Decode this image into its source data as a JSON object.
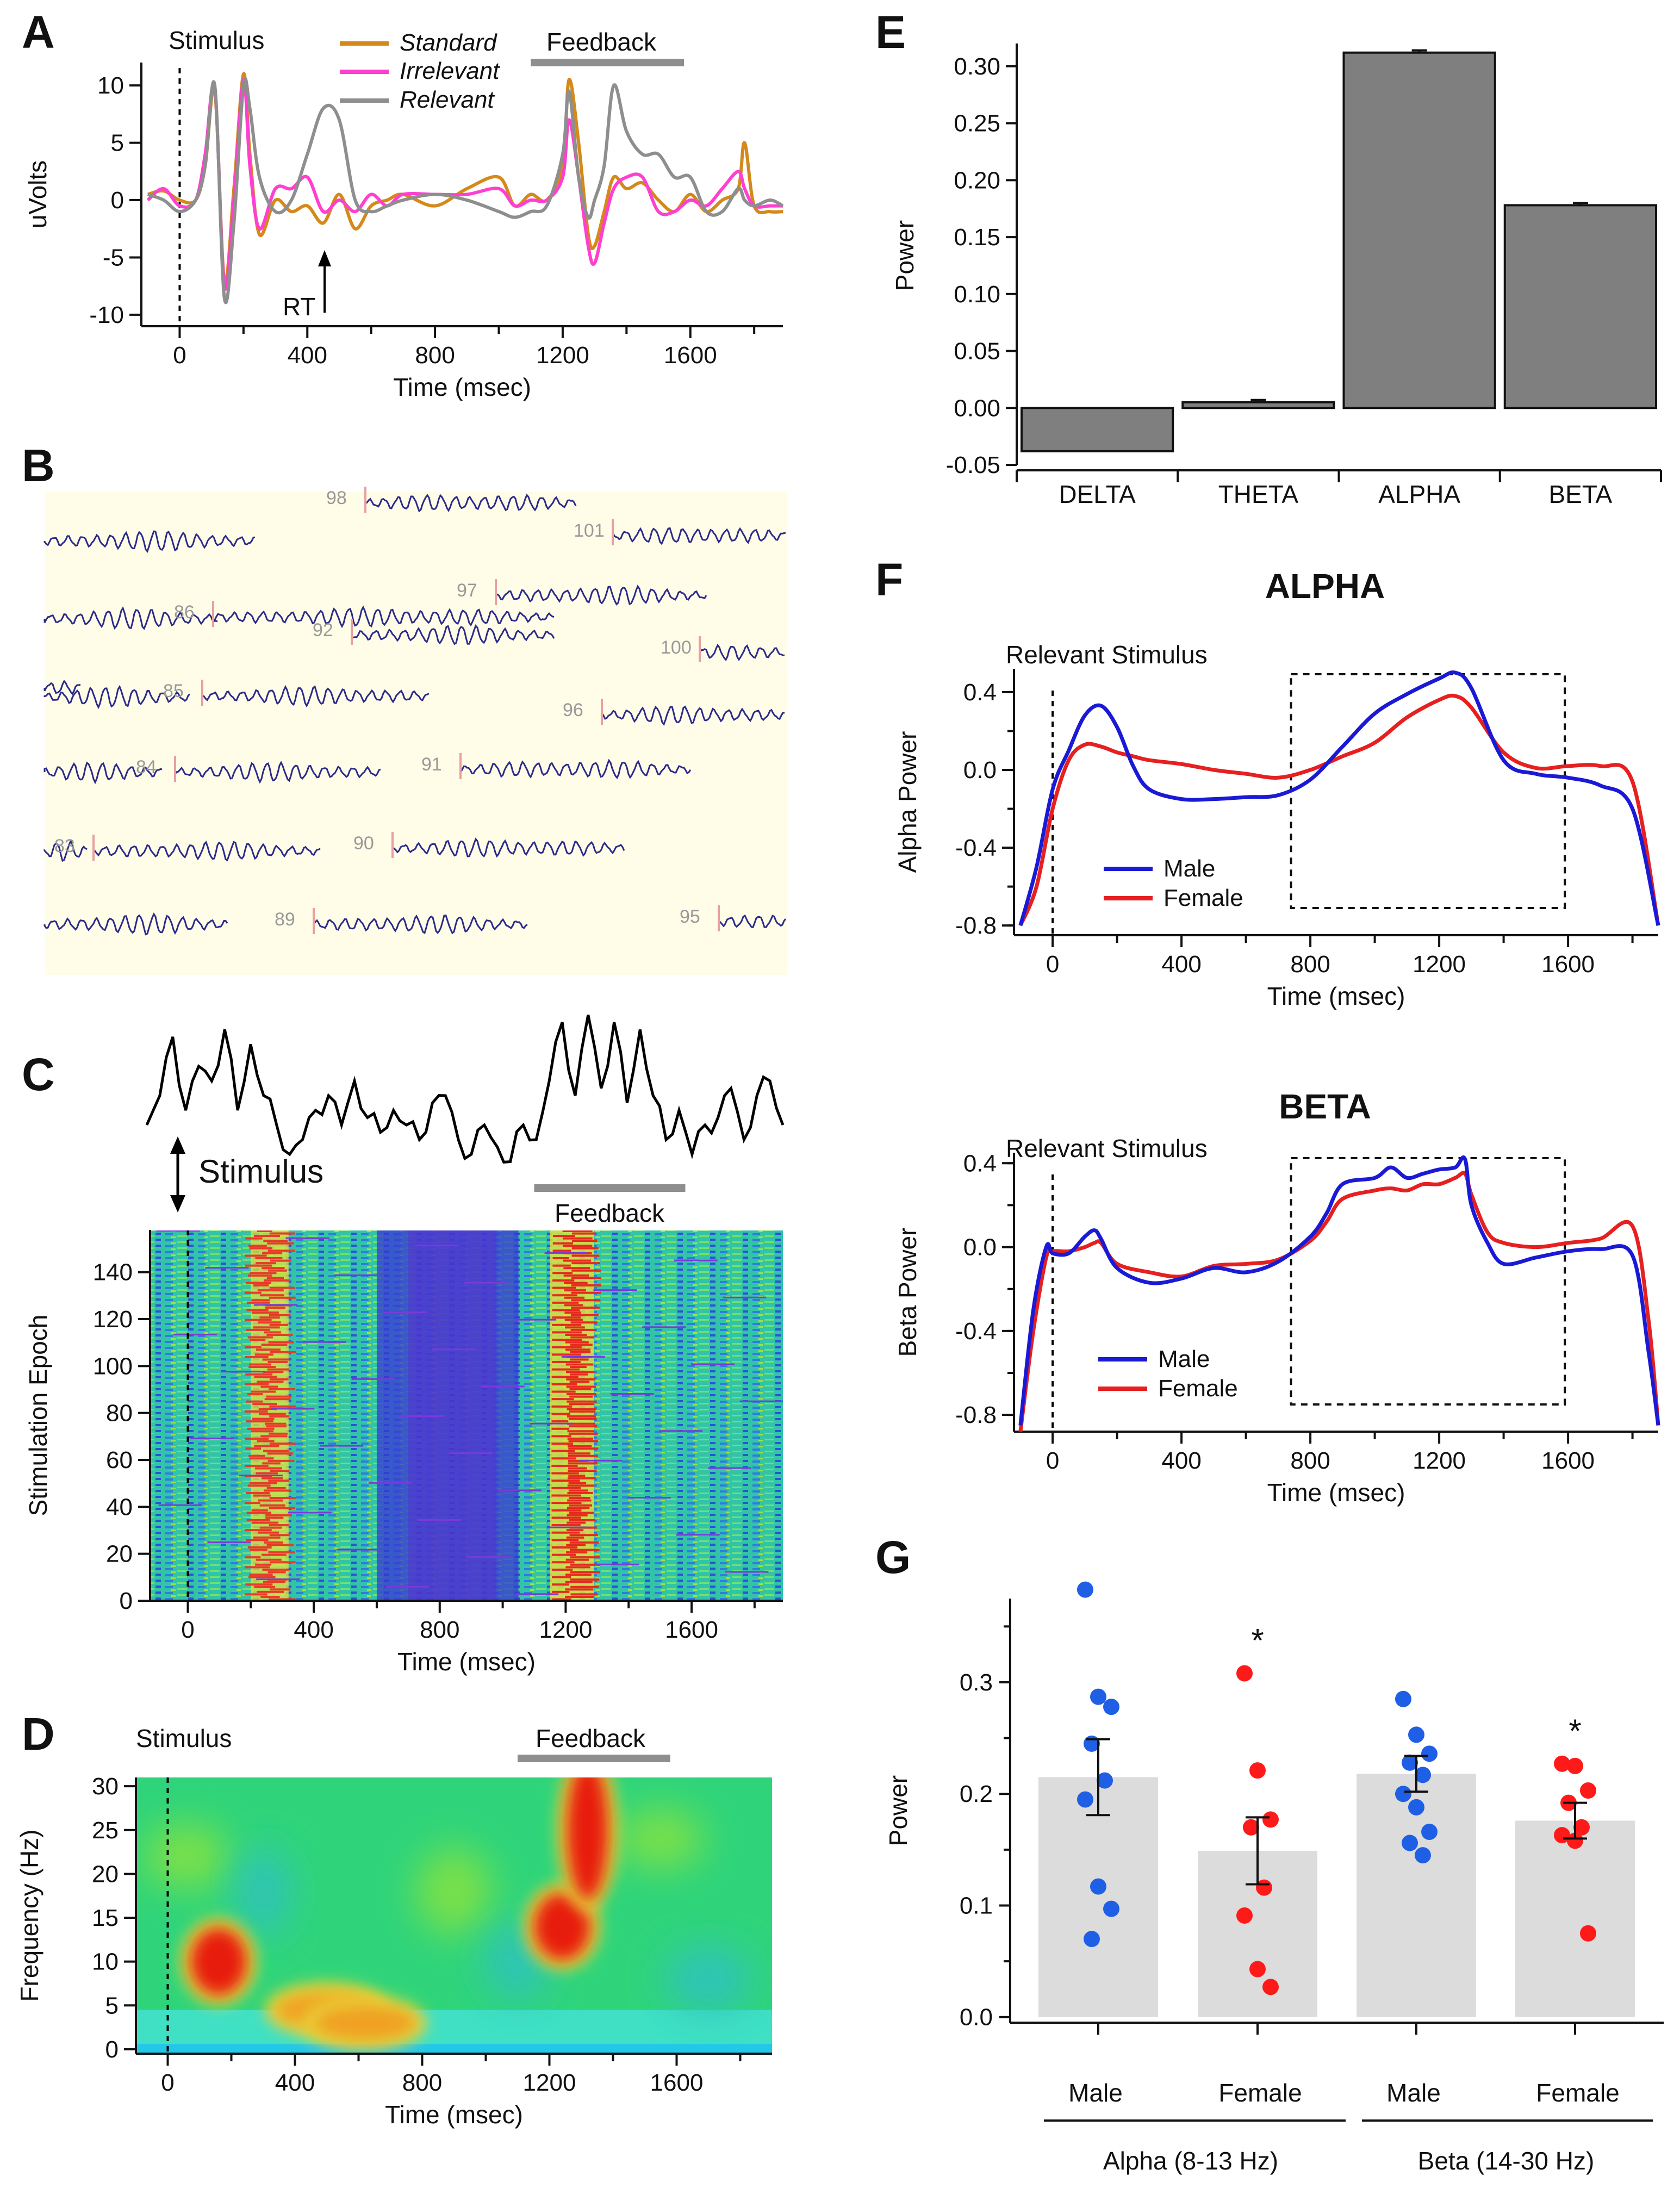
{
  "colors": {
    "standard": "#d4891a",
    "irrelevant": "#ff3fd0",
    "relevant": "#8e8e8e",
    "male": "#1a1ad6",
    "female": "#e62020",
    "bar": "#7f7f7f",
    "bar_light": "#dcdcdc",
    "feedback_bar": "#8e8e8e",
    "male_dot": "#1f5fe6",
    "female_dot": "#ff1a1a"
  },
  "panels": {
    "A": {
      "letter": "A"
    },
    "B": {
      "letter": "B"
    },
    "C": {
      "letter": "C"
    },
    "D": {
      "letter": "D"
    },
    "E": {
      "letter": "E"
    },
    "F": {
      "letter": "F"
    },
    "G": {
      "letter": "G"
    }
  },
  "panelB": {
    "epoch_labels": [
      "98",
      "101",
      "97",
      "86",
      "92",
      "100",
      "85",
      "96",
      "84",
      "91",
      "83",
      "90",
      "89",
      "95"
    ]
  },
  "chart_data": [
    {
      "panel": "A",
      "type": "line",
      "title": "",
      "xlabel": "Time (msec)",
      "ylabel": "uVolts",
      "xlim": [
        -120,
        1890
      ],
      "ylim": [
        -11,
        12
      ],
      "xticks": [
        0,
        400,
        800,
        1200,
        1600
      ],
      "yticks": [
        10,
        5,
        0,
        -5,
        -10
      ],
      "annotations": {
        "stimulus": "Stimulus",
        "rt": "RT",
        "feedback": "Feedback"
      },
      "feedback_range": [
        1100,
        1580
      ],
      "series": [
        {
          "name": "Standard",
          "color_key": "standard",
          "x": [
            -100,
            -50,
            0,
            50,
            80,
            110,
            140,
            170,
            200,
            220,
            250,
            300,
            350,
            400,
            450,
            500,
            550,
            600,
            650,
            700,
            800,
            900,
            1000,
            1050,
            1100,
            1150,
            1200,
            1220,
            1250,
            1280,
            1300,
            1330,
            1360,
            1400,
            1450,
            1500,
            1550,
            1600,
            1650,
            1700,
            1750,
            1770,
            1800,
            1850,
            1890
          ],
          "y": [
            0.5,
            0.8,
            0,
            0,
            3,
            9.5,
            -7,
            1,
            11,
            4,
            -3,
            0,
            -1,
            -0.5,
            -2,
            0.5,
            -2.5,
            -0.5,
            0,
            0.5,
            -0.5,
            1,
            2,
            -0.5,
            0.5,
            0,
            3,
            10.5,
            5,
            -3,
            -4,
            -1,
            2,
            1,
            1.5,
            0,
            -1,
            0.5,
            -1,
            0,
            1,
            5,
            -0.5,
            -1,
            -1
          ]
        },
        {
          "name": "Irrelevant",
          "color_key": "irrelevant",
          "x": [
            -100,
            -50,
            0,
            50,
            80,
            110,
            140,
            170,
            200,
            220,
            250,
            300,
            350,
            400,
            450,
            500,
            550,
            600,
            650,
            700,
            800,
            900,
            1000,
            1050,
            1100,
            1150,
            1200,
            1220,
            1250,
            1280,
            1300,
            1330,
            1360,
            1400,
            1450,
            1500,
            1550,
            1600,
            1650,
            1700,
            1750,
            1770,
            1800,
            1850,
            1890
          ],
          "y": [
            0,
            1,
            -0.5,
            0,
            4,
            9.8,
            -7.5,
            0,
            10.5,
            3,
            -2.5,
            1,
            1,
            2,
            -1,
            0,
            -1,
            0.5,
            -0.5,
            0.5,
            0.5,
            0.5,
            1,
            -0.5,
            0,
            0,
            2,
            7,
            2,
            -4,
            -5.5,
            -2,
            1,
            2,
            2,
            -1,
            -1,
            0,
            -0.5,
            1,
            2.5,
            1,
            -0.5,
            -0.5,
            -0.5
          ]
        },
        {
          "name": "Relevant",
          "color_key": "relevant",
          "x": [
            -100,
            -50,
            0,
            50,
            80,
            110,
            140,
            170,
            200,
            220,
            250,
            300,
            350,
            400,
            450,
            500,
            550,
            600,
            650,
            700,
            800,
            900,
            1000,
            1050,
            1100,
            1150,
            1200,
            1220,
            1250,
            1280,
            1300,
            1330,
            1360,
            1400,
            1450,
            1500,
            1550,
            1600,
            1650,
            1700,
            1750,
            1770,
            1800,
            1850,
            1890
          ],
          "y": [
            0.5,
            0,
            -1,
            0,
            3,
            10,
            -8.5,
            -2,
            10,
            8,
            2,
            -1,
            0,
            4,
            8,
            7,
            0,
            -1,
            -0.5,
            0,
            0.5,
            0,
            -1,
            -1.5,
            -1,
            -0.5,
            4,
            9.5,
            2,
            -1.5,
            0,
            3,
            10,
            6,
            4,
            4,
            2,
            2,
            -1,
            -1,
            1,
            0,
            -0.5,
            0,
            -0.5
          ]
        }
      ]
    },
    {
      "panel": "C",
      "type": "heatmap",
      "xlabel": "Time (msec)",
      "ylabel": "Stimulation Epoch",
      "xlim": [
        -120,
        1890
      ],
      "ylim": [
        0,
        158
      ],
      "xticks": [
        0,
        400,
        800,
        1200,
        1600
      ],
      "yticks": [
        0,
        20,
        40,
        60,
        80,
        100,
        120,
        140
      ],
      "annotations": {
        "stimulus": "Stimulus",
        "feedback": "Feedback"
      },
      "feedback_range": [
        1100,
        1580
      ],
      "trace_y": [
        0.3,
        0.5,
        0.9,
        0.4,
        0.7,
        0.6,
        0.95,
        0.4,
        0.85,
        0.5,
        0.3,
        0.1,
        0.2,
        0.4,
        0.5,
        0.3,
        0.6,
        0.35,
        0.25,
        0.4,
        0.3,
        0.2,
        0.45,
        0.5,
        0.2,
        0.1,
        0.3,
        0.15,
        0.05,
        0.3,
        0.2,
        0.6,
        1.0,
        0.5,
        1.05,
        0.55,
        1.0,
        0.45,
        0.95,
        0.5,
        0.2,
        0.4,
        0.1,
        0.3,
        0.35,
        0.55,
        0.2,
        0.5,
        0.6,
        0.3
      ]
    },
    {
      "panel": "D",
      "type": "heatmap",
      "xlabel": "Time (msec)",
      "ylabel": "Frequency (Hz)",
      "xlim": [
        -100,
        1900
      ],
      "ylim": [
        -0.5,
        31
      ],
      "xticks": [
        0,
        400,
        800,
        1200,
        1600
      ],
      "yticks": [
        0,
        5,
        10,
        15,
        20,
        25,
        30
      ],
      "annotations": {
        "stimulus": "Stimulus",
        "feedback": "Feedback"
      },
      "feedback_range": [
        1100,
        1580
      ],
      "hotspots": [
        {
          "t": 160,
          "f": 10,
          "level": "high"
        },
        {
          "t": 500,
          "f": 4.5,
          "level": "mid"
        },
        {
          "t": 620,
          "f": 3,
          "level": "mid"
        },
        {
          "t": 1240,
          "f": 14,
          "level": "high"
        },
        {
          "t": 1320,
          "f": 25,
          "level": "high"
        }
      ]
    },
    {
      "panel": "E",
      "type": "bar",
      "xlabel": "",
      "ylabel": "Power",
      "ylim": [
        -0.05,
        0.32
      ],
      "yticks": [
        0.3,
        0.25,
        0.2,
        0.15,
        0.1,
        0.05,
        0.0,
        -0.05
      ],
      "ytick_labels": [
        "0.30",
        "0.25",
        "0.20",
        "0.15",
        "0.10",
        "0.05",
        "0.00",
        "-0.05"
      ],
      "categories": [
        "DELTA",
        "THETA",
        "ALPHA",
        "BETA"
      ],
      "values": [
        -0.038,
        0.005,
        0.312,
        0.178
      ],
      "errors": [
        0.0,
        0.002,
        0.002,
        0.002
      ]
    },
    {
      "panel": "F-alpha",
      "type": "line",
      "title": "ALPHA",
      "xlabel": "Time (msec)",
      "ylabel": "Alpha Power",
      "xlim": [
        -120,
        1880
      ],
      "ylim": [
        -0.85,
        0.52
      ],
      "xticks": [
        0,
        400,
        800,
        1200,
        1600
      ],
      "yticks": [
        0.4,
        0.0,
        -0.4,
        -0.8
      ],
      "ytick_labels": [
        "0.4",
        "0.0",
        "-0.4",
        "-0.8"
      ],
      "annotations": {
        "stimulus": "Relevant Stimulus"
      },
      "window": [
        740,
        1590
      ],
      "series": [
        {
          "name": "Male",
          "color_key": "male",
          "x": [
            -100,
            -50,
            0,
            50,
            100,
            150,
            200,
            250,
            300,
            400,
            500,
            600,
            700,
            800,
            900,
            1000,
            1100,
            1200,
            1250,
            1300,
            1400,
            1500,
            1600,
            1700,
            1800,
            1880
          ],
          "y": [
            -0.8,
            -0.5,
            -0.1,
            0.1,
            0.28,
            0.33,
            0.22,
            0.02,
            -0.1,
            -0.15,
            -0.15,
            -0.14,
            -0.13,
            -0.05,
            0.12,
            0.29,
            0.39,
            0.47,
            0.5,
            0.42,
            0.05,
            -0.02,
            -0.04,
            -0.08,
            -0.2,
            -0.8
          ]
        },
        {
          "name": "Female",
          "color_key": "female",
          "x": [
            -100,
            -50,
            0,
            50,
            100,
            150,
            200,
            250,
            300,
            400,
            500,
            600,
            700,
            800,
            900,
            1000,
            1100,
            1200,
            1250,
            1300,
            1400,
            1500,
            1600,
            1700,
            1800,
            1880
          ],
          "y": [
            -0.8,
            -0.6,
            -0.2,
            0.05,
            0.13,
            0.12,
            0.09,
            0.07,
            0.05,
            0.03,
            0.0,
            -0.02,
            -0.04,
            0.0,
            0.07,
            0.14,
            0.27,
            0.36,
            0.38,
            0.32,
            0.09,
            0.01,
            0.02,
            0.02,
            -0.06,
            -0.8
          ]
        }
      ]
    },
    {
      "panel": "F-beta",
      "type": "line",
      "title": "BETA",
      "xlabel": "Time (msec)",
      "ylabel": "Beta Power",
      "xlim": [
        -120,
        1880
      ],
      "ylim": [
        -0.88,
        0.45
      ],
      "xticks": [
        0,
        400,
        800,
        1200,
        1600
      ],
      "yticks": [
        0.4,
        0.0,
        -0.4,
        -0.8
      ],
      "ytick_labels": [
        "0.4",
        "0.0",
        "-0.4",
        "-0.8"
      ],
      "annotations": {
        "stimulus": "Relevant Stimulus"
      },
      "window": [
        740,
        1590
      ],
      "series": [
        {
          "name": "Male",
          "color_key": "male",
          "x": [
            -100,
            -60,
            -20,
            0,
            50,
            100,
            130,
            150,
            200,
            300,
            400,
            500,
            600,
            700,
            800,
            850,
            900,
            1000,
            1050,
            1100,
            1150,
            1200,
            1250,
            1280,
            1300,
            1350,
            1400,
            1500,
            1600,
            1700,
            1800,
            1850,
            1880
          ],
          "y": [
            -0.85,
            -0.3,
            0.0,
            -0.03,
            -0.03,
            0.05,
            0.08,
            0.04,
            -0.1,
            -0.17,
            -0.15,
            -0.1,
            -0.12,
            -0.07,
            0.05,
            0.16,
            0.3,
            0.33,
            0.38,
            0.33,
            0.35,
            0.37,
            0.38,
            0.42,
            0.2,
            0.02,
            -0.08,
            -0.05,
            -0.02,
            -0.01,
            -0.04,
            -0.5,
            -0.85
          ]
        },
        {
          "name": "Female",
          "color_key": "female",
          "x": [
            -100,
            -60,
            -20,
            0,
            50,
            100,
            130,
            150,
            200,
            300,
            400,
            500,
            600,
            700,
            800,
            850,
            900,
            1000,
            1050,
            1100,
            1150,
            1200,
            1250,
            1280,
            1300,
            1350,
            1400,
            1500,
            1600,
            1700,
            1800,
            1850,
            1880
          ],
          "y": [
            -0.88,
            -0.4,
            -0.05,
            -0.02,
            -0.02,
            0.0,
            0.02,
            0.02,
            -0.08,
            -0.12,
            -0.14,
            -0.09,
            -0.08,
            -0.06,
            0.03,
            0.12,
            0.23,
            0.27,
            0.28,
            0.27,
            0.3,
            0.3,
            0.33,
            0.35,
            0.25,
            0.07,
            0.02,
            0.0,
            0.02,
            0.04,
            0.1,
            -0.35,
            -0.85
          ]
        }
      ]
    },
    {
      "panel": "G",
      "type": "scatter",
      "xlabel": "",
      "ylabel": "Power",
      "ylim": [
        -0.005,
        0.375
      ],
      "yticks": [
        0.0,
        0.1,
        0.2,
        0.3
      ],
      "ytick_labels": [
        "0.0",
        "0.1",
        "0.2",
        "0.3"
      ],
      "categories": [
        "Male",
        "Female",
        "Male",
        "Female"
      ],
      "groups": [
        "Alpha (8-13 Hz)",
        "Beta (14-30 Hz)"
      ],
      "means": [
        0.215,
        0.149,
        0.218,
        0.176
      ],
      "sems": [
        0.034,
        0.03,
        0.016,
        0.016
      ],
      "significance": [
        "",
        "*",
        "",
        "*"
      ],
      "points": [
        [
          0.383,
          0.287,
          0.278,
          0.245,
          0.212,
          0.195,
          0.117,
          0.097,
          0.07
        ],
        [
          0.308,
          0.221,
          0.177,
          0.17,
          0.116,
          0.091,
          0.043,
          0.027
        ],
        [
          0.285,
          0.253,
          0.236,
          0.228,
          0.217,
          0.2,
          0.188,
          0.166,
          0.156,
          0.145
        ],
        [
          0.227,
          0.225,
          0.203,
          0.192,
          0.17,
          0.163,
          0.158,
          0.075
        ]
      ]
    }
  ]
}
